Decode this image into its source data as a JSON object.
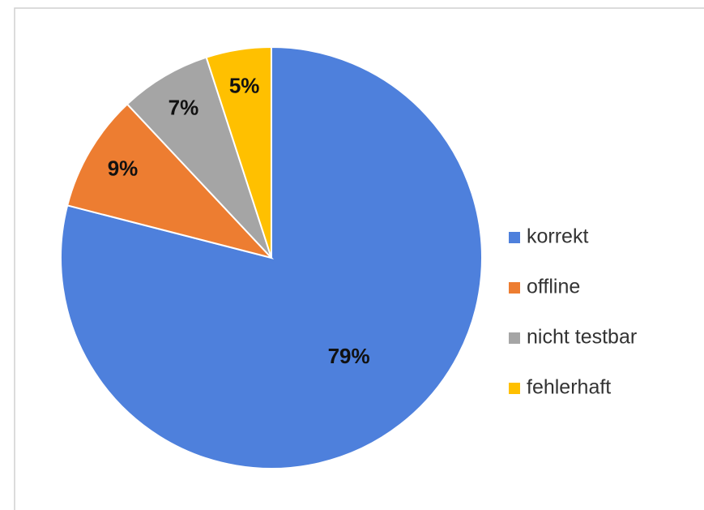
{
  "chart_data": {
    "type": "pie",
    "categories": [
      "korrekt",
      "offline",
      "nicht testbar",
      "fehlerhaft"
    ],
    "values": [
      79,
      9,
      7,
      5
    ],
    "value_labels": [
      "79%",
      "9%",
      "7%",
      "5%"
    ],
    "colors": [
      "#4e80dc",
      "#ed7d31",
      "#a5a5a5",
      "#ffc000"
    ],
    "legend": "right"
  }
}
